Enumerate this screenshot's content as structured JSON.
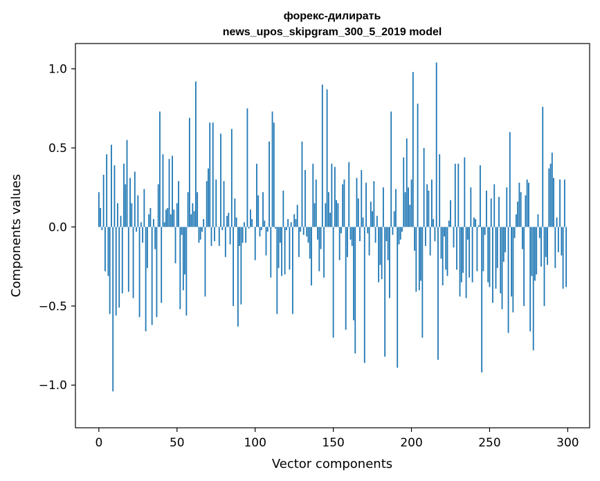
{
  "chart_data": {
    "type": "bar",
    "title_line1": "форекс-дилирать",
    "title_line2": "news_upos_skipgram_300_5_2019 model",
    "xlabel": "Vector components",
    "ylabel": "Components values",
    "xlim": [
      -15,
      314
    ],
    "ylim": [
      -1.27,
      1.16
    ],
    "xticks": [
      0,
      50,
      100,
      150,
      200,
      250,
      300
    ],
    "yticks": [
      1.0,
      0.5,
      0.0,
      -0.5,
      -1.0
    ],
    "ytick_labels": [
      "1.0",
      "0.5",
      "0.0",
      "−0.5",
      "−1.0"
    ],
    "bar_color": "#1f77b4",
    "grid": false,
    "values": [
      0.22,
      0.12,
      -0.02,
      0.33,
      -0.28,
      0.46,
      -0.31,
      -0.55,
      0.52,
      -1.04,
      0.39,
      -0.56,
      0.15,
      -0.51,
      0.07,
      -0.42,
      0.4,
      0.27,
      0.55,
      -0.41,
      0.31,
      0.15,
      -0.45,
      0.35,
      -0.03,
      0.2,
      -0.57,
      0.03,
      -0.1,
      0.24,
      -0.66,
      -0.26,
      0.08,
      0.12,
      -0.62,
      0.05,
      -0.14,
      -0.57,
      0.27,
      0.73,
      -0.48,
      0.46,
      0.03,
      0.11,
      0.12,
      0.43,
      0.08,
      0.45,
      0.11,
      -0.23,
      0.15,
      0.29,
      -0.52,
      -0.05,
      -0.4,
      -0.3,
      -0.56,
      0.22,
      0.69,
      0.08,
      0.15,
      0.1,
      0.92,
      0.22,
      -0.1,
      -0.08,
      -0.03,
      0.05,
      -0.44,
      0.29,
      0.37,
      0.66,
      -0.12,
      0.66,
      -0.09,
      0.3,
      0.0,
      -0.12,
      0.59,
      -0.02,
      0.29,
      -0.19,
      0.07,
      0.09,
      -0.11,
      0.62,
      -0.5,
      0.18,
      0.06,
      -0.63,
      -0.12,
      -0.49,
      -0.1,
      0.03,
      -0.1,
      0.75,
      -0.01,
      0.11,
      0.05,
      0.0,
      -0.21,
      0.4,
      0.2,
      -0.06,
      -0.02,
      0.22,
      0.04,
      -0.18,
      -0.03,
      0.54,
      -0.32,
      0.73,
      0.66,
      -0.01,
      -0.55,
      -0.26,
      -0.1,
      -0.31,
      0.23,
      -0.3,
      -0.02,
      0.05,
      -0.27,
      0.03,
      -0.55,
      0.08,
      0.05,
      0.14,
      -0.19,
      -0.03,
      0.54,
      -0.05,
      0.36,
      -0.06,
      -0.1,
      -0.2,
      -0.37,
      0.4,
      0.15,
      0.3,
      -0.08,
      -0.28,
      -0.14,
      0.9,
      -0.32,
      0.15,
      0.87,
      0.22,
      0.09,
      0.4,
      -0.7,
      0.38,
      0.17,
      0.15,
      -0.21,
      -0.04,
      0.27,
      0.3,
      -0.65,
      -0.19,
      0.41,
      -0.08,
      -0.12,
      -0.59,
      -0.8,
      0.31,
      0.18,
      -0.09,
      0.36,
      0.06,
      -0.86,
      0.28,
      -0.04,
      -0.18,
      0.16,
      0.1,
      0.29,
      -0.1,
      0.07,
      -0.35,
      -0.24,
      -0.33,
      0.25,
      -0.82,
      -0.09,
      -0.21,
      -0.45,
      0.73,
      -0.05,
      0.1,
      0.24,
      -0.89,
      -0.11,
      -0.08,
      -0.03,
      0.44,
      0.22,
      0.56,
      0.25,
      0.14,
      0.3,
      0.98,
      -0.15,
      -0.41,
      0.78,
      -0.4,
      -0.34,
      -0.7,
      0.5,
      -0.12,
      0.27,
      0.23,
      -0.18,
      0.3,
      0.05,
      -0.09,
      1.04,
      -0.84,
      0.46,
      -0.2,
      -0.37,
      -0.06,
      -0.27,
      -0.31,
      0.04,
      0.17,
      0.0,
      -0.13,
      0.4,
      -0.27,
      0.4,
      -0.44,
      -0.35,
      -0.29,
      0.44,
      -0.45,
      -0.08,
      -0.32,
      0.25,
      -0.35,
      0.06,
      0.05,
      -0.28,
      0.01,
      0.39,
      -0.92,
      -0.28,
      -0.05,
      0.23,
      -0.35,
      -0.38,
      0.18,
      -0.48,
      0.27,
      -0.39,
      -0.26,
      0.19,
      -0.42,
      -0.52,
      -0.22,
      -0.16,
      0.25,
      -0.67,
      0.6,
      -0.44,
      -0.54,
      -0.07,
      0.08,
      0.16,
      0.28,
      0.22,
      -0.14,
      -0.5,
      0.2,
      0.3,
      0.28,
      -0.66,
      -0.31,
      -0.78,
      -0.34,
      -0.3,
      0.08,
      -0.07,
      -0.25,
      0.76,
      -0.5,
      -0.19,
      -0.24,
      0.37,
      0.4,
      0.47,
      0.31,
      -0.26,
      0.06,
      -0.16,
      0.3,
      -0.18,
      -0.39,
      0.3,
      -0.38
    ]
  }
}
